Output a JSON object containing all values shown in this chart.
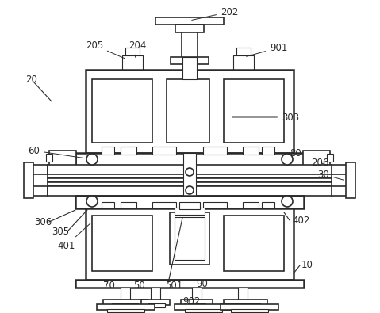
{
  "bg_color": "#ffffff",
  "line_color": "#2a2a2a",
  "label_color": "#2a2a2a",
  "lw_thin": 0.8,
  "lw_med": 1.2,
  "lw_thick": 1.8,
  "label_fs": 8.5
}
